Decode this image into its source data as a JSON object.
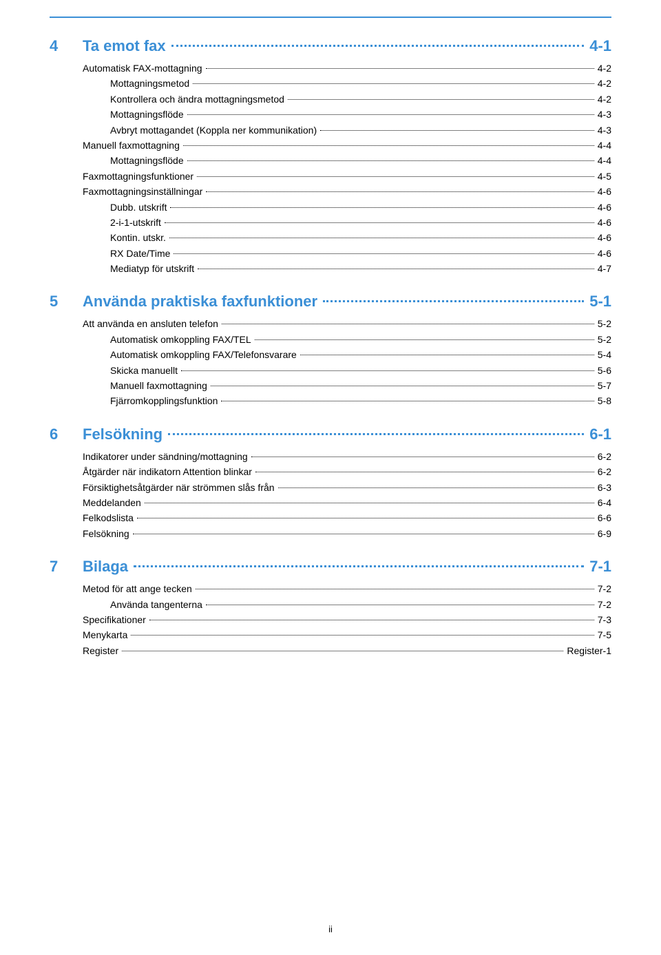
{
  "top_rule_color": "#3b8fd6",
  "sections": [
    {
      "num": "4",
      "title": "Ta emot fax",
      "page": "4-1",
      "entries": [
        {
          "label": "Automatisk FAX-mottagning",
          "page": "4-2",
          "indent": false
        },
        {
          "label": "Mottagningsmetod",
          "page": "4-2",
          "indent": true
        },
        {
          "label": "Kontrollera och ändra mottagningsmetod",
          "page": "4-2",
          "indent": true
        },
        {
          "label": "Mottagningsflöde",
          "page": "4-3",
          "indent": true
        },
        {
          "label": "Avbryt mottagandet (Koppla ner kommunikation)",
          "page": "4-3",
          "indent": true
        },
        {
          "label": "Manuell faxmottagning",
          "page": "4-4",
          "indent": false
        },
        {
          "label": "Mottagningsflöde",
          "page": "4-4",
          "indent": true
        },
        {
          "label": "Faxmottagningsfunktioner",
          "page": "4-5",
          "indent": false
        },
        {
          "label": "Faxmottagningsinställningar",
          "page": "4-6",
          "indent": false
        },
        {
          "label": "Dubb. utskrift",
          "page": "4-6",
          "indent": true
        },
        {
          "label": "2-i-1-utskrift",
          "page": "4-6",
          "indent": true
        },
        {
          "label": "Kontin. utskr.",
          "page": "4-6",
          "indent": true
        },
        {
          "label": "RX Date/Time",
          "page": "4-6",
          "indent": true
        },
        {
          "label": "Mediatyp för utskrift",
          "page": "4-7",
          "indent": true
        }
      ]
    },
    {
      "num": "5",
      "title": "Använda praktiska faxfunktioner",
      "page": "5-1",
      "entries": [
        {
          "label": "Att använda en ansluten telefon",
          "page": "5-2",
          "indent": false
        },
        {
          "label": "Automatisk omkoppling FAX/TEL",
          "page": "5-2",
          "indent": true
        },
        {
          "label": "Automatisk omkoppling FAX/Telefonsvarare",
          "page": "5-4",
          "indent": true
        },
        {
          "label": "Skicka manuellt",
          "page": "5-6",
          "indent": true
        },
        {
          "label": "Manuell faxmottagning",
          "page": "5-7",
          "indent": true
        },
        {
          "label": "Fjärromkopplingsfunktion",
          "page": "5-8",
          "indent": true
        }
      ]
    },
    {
      "num": "6",
      "title": "Felsökning",
      "page": "6-1",
      "entries": [
        {
          "label": "Indikatorer under sändning/mottagning",
          "page": "6-2",
          "indent": false
        },
        {
          "label": "Åtgärder när indikatorn Attention blinkar",
          "page": "6-2",
          "indent": false
        },
        {
          "label": "Försiktighetsåtgärder när strömmen slås från",
          "page": "6-3",
          "indent": false
        },
        {
          "label": "Meddelanden",
          "page": "6-4",
          "indent": false
        },
        {
          "label": "Felkodslista",
          "page": "6-6",
          "indent": false
        },
        {
          "label": "Felsökning",
          "page": "6-9",
          "indent": false
        }
      ]
    },
    {
      "num": "7",
      "title": "Bilaga",
      "page": "7-1",
      "entries": [
        {
          "label": "Metod för att ange tecken",
          "page": "7-2",
          "indent": false
        },
        {
          "label": "Använda tangenterna",
          "page": "7-2",
          "indent": true
        },
        {
          "label": "Specifikationer",
          "page": "7-3",
          "indent": false
        },
        {
          "label": "Menykarta",
          "page": "7-5",
          "indent": false
        },
        {
          "label": "Register",
          "page": "Register-1",
          "indent": false
        }
      ]
    }
  ],
  "page_number": "ii"
}
